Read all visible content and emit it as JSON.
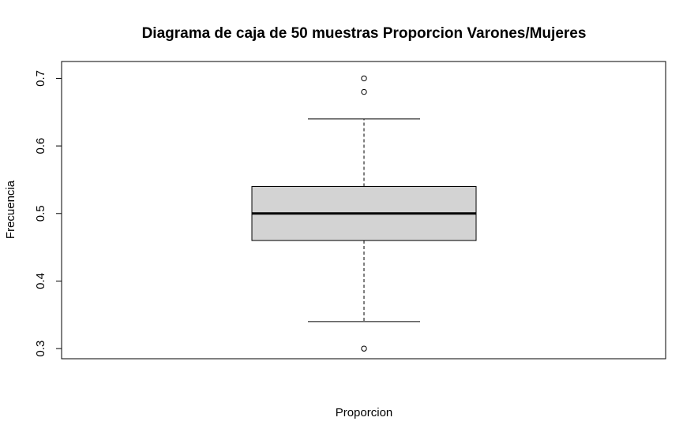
{
  "chart_data": {
    "type": "boxplot",
    "title": "Diagrama de caja de 50 muestras Proporcion Varones/Mujeres",
    "xlabel": "Proporcion",
    "ylabel": "Frecuencia",
    "ylim": [
      0.285,
      0.725
    ],
    "yticks": [
      0.3,
      0.4,
      0.5,
      0.6,
      0.7
    ],
    "ytick_labels": [
      "0.3",
      "0.4",
      "0.5",
      "0.6",
      "0.7"
    ],
    "box": {
      "whisker_low": 0.34,
      "q1": 0.46,
      "median": 0.5,
      "q3": 0.54,
      "whisker_high": 0.64
    },
    "outliers": [
      0.3,
      0.68,
      0.7
    ],
    "grid": false,
    "colors": {
      "box_fill": "#d3d3d3",
      "stroke": "#000000",
      "background": "#ffffff"
    }
  }
}
